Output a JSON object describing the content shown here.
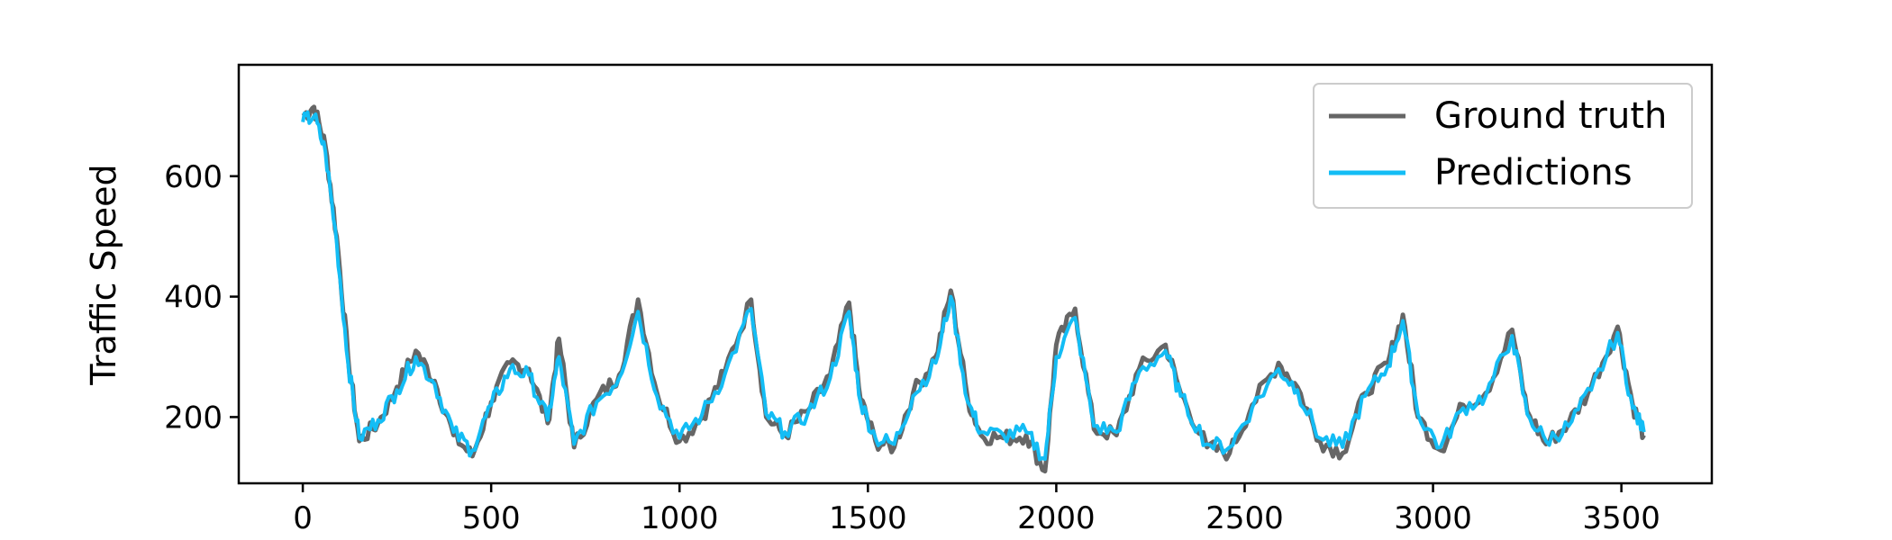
{
  "chart_data": {
    "type": "line",
    "title": "",
    "xlabel": "",
    "ylabel": "Traffic Speed",
    "xlim": [
      -170,
      3740
    ],
    "ylim": [
      90,
      785
    ],
    "xticks": [
      0,
      500,
      1000,
      1500,
      2000,
      2500,
      3000,
      3500
    ],
    "yticks": [
      200,
      400,
      600
    ],
    "grid": false,
    "legend_position": "top-right",
    "series": [
      {
        "name": "Ground truth",
        "color": "#666666",
        "x": [
          0,
          30,
          60,
          90,
          120,
          150,
          200,
          250,
          300,
          350,
          400,
          450,
          500,
          550,
          600,
          650,
          680,
          720,
          780,
          840,
          890,
          940,
          1000,
          1060,
          1120,
          1190,
          1230,
          1280,
          1340,
          1400,
          1450,
          1480,
          1520,
          1570,
          1620,
          1680,
          1720,
          1765,
          1800,
          1860,
          1920,
          1970,
          2000,
          2050,
          2100,
          2160,
          2220,
          2290,
          2330,
          2400,
          2460,
          2520,
          2590,
          2640,
          2700,
          2760,
          2820,
          2880,
          2920,
          2960,
          3020,
          3080,
          3140,
          3210,
          3250,
          3300,
          3360,
          3420,
          3490,
          3530,
          3560
        ],
        "y": [
          700,
          715,
          650,
          500,
          300,
          160,
          190,
          250,
          310,
          260,
          170,
          135,
          225,
          290,
          280,
          190,
          330,
          150,
          230,
          270,
          395,
          240,
          160,
          200,
          275,
          395,
          200,
          170,
          210,
          270,
          390,
          230,
          160,
          150,
          240,
          300,
          410,
          230,
          170,
          165,
          170,
          110,
          320,
          380,
          180,
          170,
          280,
          320,
          240,
          150,
          140,
          220,
          290,
          250,
          160,
          140,
          240,
          290,
          370,
          200,
          145,
          220,
          240,
          345,
          210,
          155,
          190,
          250,
          350,
          220,
          170
        ]
      },
      {
        "name": "Predictions",
        "color": "#13bdf5",
        "x": [
          0,
          30,
          60,
          90,
          120,
          150,
          200,
          250,
          300,
          350,
          400,
          450,
          500,
          550,
          600,
          650,
          680,
          720,
          780,
          840,
          890,
          940,
          1000,
          1060,
          1120,
          1190,
          1230,
          1280,
          1340,
          1400,
          1450,
          1480,
          1520,
          1570,
          1620,
          1680,
          1720,
          1765,
          1800,
          1860,
          1920,
          1970,
          2000,
          2050,
          2100,
          2160,
          2220,
          2290,
          2330,
          2400,
          2460,
          2520,
          2590,
          2640,
          2700,
          2760,
          2820,
          2880,
          2920,
          2960,
          3020,
          3080,
          3140,
          3210,
          3250,
          3300,
          3360,
          3420,
          3490,
          3530,
          3560
        ],
        "y": [
          690,
          700,
          640,
          490,
          290,
          165,
          195,
          245,
          300,
          255,
          175,
          145,
          220,
          280,
          270,
          195,
          300,
          155,
          225,
          265,
          375,
          235,
          165,
          205,
          270,
          380,
          205,
          175,
          205,
          265,
          375,
          225,
          165,
          155,
          235,
          290,
          400,
          225,
          175,
          170,
          175,
          130,
          300,
          365,
          185,
          175,
          275,
          310,
          235,
          155,
          150,
          215,
          280,
          245,
          165,
          150,
          235,
          285,
          360,
          205,
          150,
          215,
          235,
          335,
          205,
          160,
          185,
          245,
          340,
          215,
          175
        ]
      }
    ]
  }
}
